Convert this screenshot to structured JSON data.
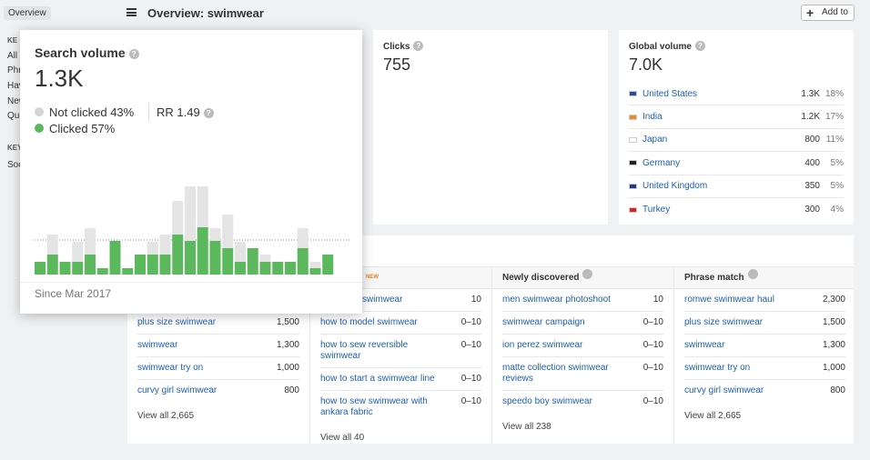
{
  "top_bar": {
    "tab": "Overview",
    "title": "Overview: swimwear",
    "button": "Add to"
  },
  "sidebar": {
    "items": [
      "KE",
      "All",
      "Phr",
      "Hav",
      "New",
      "Que",
      "KEY",
      "Soc"
    ]
  },
  "search_volume": {
    "title": "Search volume",
    "value": "1.3K",
    "not_clicked": "Not clicked 43%",
    "clicked": "Clicked 57%",
    "rr": "RR 1.49",
    "since": "Since Mar 2017",
    "chart": {
      "type": "bar",
      "clicked": [
        14,
        22,
        14,
        14,
        22,
        7,
        37,
        7,
        22,
        22,
        22,
        44,
        37,
        52,
        37,
        29,
        14,
        29,
        14,
        14,
        14,
        29,
        7,
        22
      ],
      "not_clicked": [
        0,
        22,
        0,
        22,
        29,
        0,
        0,
        0,
        0,
        14,
        22,
        37,
        60,
        45,
        14,
        37,
        22,
        0,
        8,
        0,
        0,
        22,
        7,
        0
      ],
      "clicked_color": "#5cb85c",
      "not_clicked_color": "#e4e4e4"
    }
  },
  "clicks": {
    "title": "Clicks",
    "value": "755"
  },
  "global_volume": {
    "title": "Global volume",
    "value": "7.0K",
    "countries": [
      {
        "name": "United States",
        "volume": "1.3K",
        "share": "18%"
      },
      {
        "name": "India",
        "volume": "1.2K",
        "share": "17%"
      },
      {
        "name": "Japan",
        "volume": "800",
        "share": "11%"
      },
      {
        "name": "Germany",
        "volume": "400",
        "share": "5%"
      },
      {
        "name": "United Kingdom",
        "volume": "350",
        "share": "5%"
      },
      {
        "name": "Turkey",
        "volume": "300",
        "share": "4%"
      }
    ]
  },
  "keywords": {
    "columns": [
      {
        "rows": [
          {
            "keyword": "plus size swimwear",
            "volume": "1,500"
          },
          {
            "keyword": "swimwear",
            "volume": "1,300"
          },
          {
            "keyword": "swimwear try on",
            "volume": "1,000"
          },
          {
            "keyword": "curvy girl swimwear",
            "volume": "800"
          }
        ],
        "view_all": "View all 2,665"
      },
      {
        "header": "NEW",
        "rows": [
          {
            "keyword": "swimwear",
            "volume": "10"
          },
          {
            "keyword": "how to model swimwear",
            "volume": "0–10"
          },
          {
            "keyword": "how to sew reversible swimwear",
            "volume": "0–10"
          },
          {
            "keyword": "how to start a swimwear line",
            "volume": "0–10"
          },
          {
            "keyword": "how to sew swimwear with ankara fabric",
            "volume": "0–10"
          }
        ],
        "view_all": "View all 40"
      },
      {
        "header": "Newly discovered",
        "rows": [
          {
            "keyword": "men swimwear photoshoot",
            "volume": "10"
          },
          {
            "keyword": "swimwear campaign",
            "volume": "0–10"
          },
          {
            "keyword": "ion perez swimwear",
            "volume": "0–10"
          },
          {
            "keyword": "matte collection swimwear reviews",
            "volume": "0–10"
          },
          {
            "keyword": "speedo boy swimwear",
            "volume": "0–10"
          }
        ],
        "view_all": "View all 238"
      },
      {
        "header": "Phrase match",
        "rows": [
          {
            "keyword": "romwe swimwear haul",
            "volume": "2,300"
          },
          {
            "keyword": "plus size swimwear",
            "volume": "1,500"
          },
          {
            "keyword": "swimwear",
            "volume": "1,300"
          },
          {
            "keyword": "swimwear try on",
            "volume": "1,000"
          },
          {
            "keyword": "curvy girl swimwear",
            "volume": "800"
          }
        ],
        "view_all": "View all 2,665"
      }
    ]
  }
}
